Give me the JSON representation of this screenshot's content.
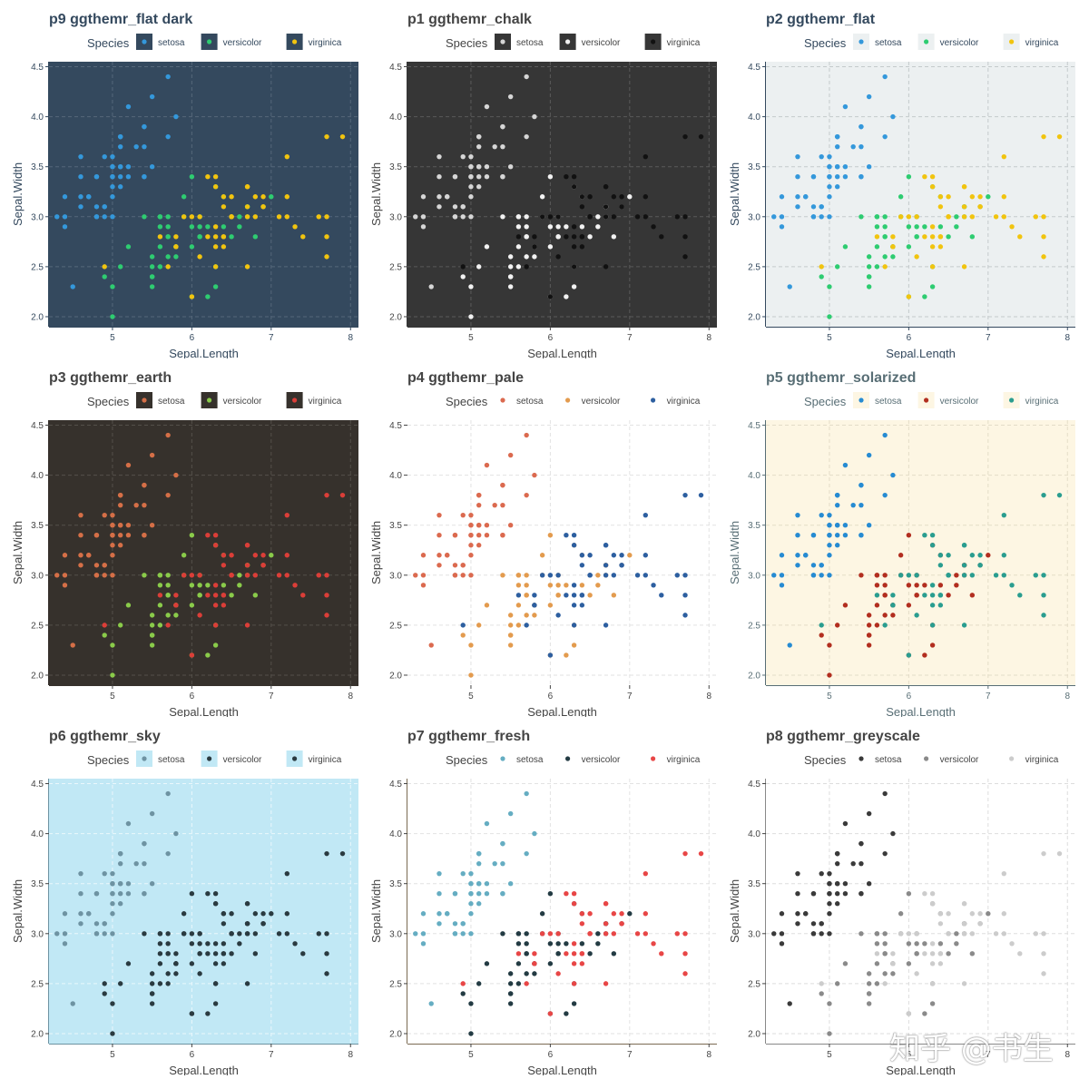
{
  "watermark": "知乎 @书生",
  "chart_data": [
    {
      "type": "scatter",
      "title": "p9 ggthemr_flat dark",
      "xlabel": "Sepal.Length",
      "ylabel": "Sepal.Width",
      "legend_title": "Species",
      "legend_position": "top",
      "xlim": [
        4.2,
        8.1
      ],
      "ylim": [
        1.9,
        4.55
      ],
      "x_ticks": [
        5,
        6,
        7,
        8
      ],
      "y_ticks": [
        2.0,
        2.5,
        3.0,
        3.5,
        4.0,
        4.5
      ],
      "grid": true,
      "legend_key_bg": "#34495E",
      "legend_point_style": "dot",
      "series": [
        {
          "name": "setosa",
          "color": "#3498DB"
        },
        {
          "name": "versicolor",
          "color": "#2ECC71"
        },
        {
          "name": "virginica",
          "color": "#F1C40F"
        }
      ],
      "theme": {
        "panel_bg": "#34495E",
        "text_color": "#34495E",
        "title_color": "#34495E",
        "tick_color": "#34495E",
        "grid_color": "#55677A",
        "axis_line": "#34495E"
      }
    },
    {
      "type": "scatter",
      "title": "p1 ggthemr_chalk",
      "xlabel": "Sepal.Length",
      "ylabel": "Sepal.Width",
      "legend_title": "Species",
      "legend_position": "top",
      "xlim": [
        4.2,
        8.1
      ],
      "ylim": [
        1.9,
        4.55
      ],
      "x_ticks": [
        5,
        6,
        7,
        8
      ],
      "y_ticks": [
        2.0,
        2.5,
        3.0,
        3.5,
        4.0,
        4.5
      ],
      "grid": true,
      "legend_key_bg": "#363636",
      "legend_point_style": "dot",
      "series": [
        {
          "name": "setosa",
          "color": "#D6D6D6"
        },
        {
          "name": "versicolor",
          "color": "#F2F2F2"
        },
        {
          "name": "virginica",
          "color": "#111111"
        }
      ],
      "theme": {
        "panel_bg": "#363636",
        "text_color": "#444444",
        "title_color": "#444444",
        "tick_color": "#444444",
        "grid_color": "#5A5A5A",
        "axis_line": "#363636"
      }
    },
    {
      "type": "scatter",
      "title": "p2 ggthemr_flat",
      "xlabel": "Sepal.Length",
      "ylabel": "Sepal.Width",
      "legend_title": "Species",
      "legend_position": "top",
      "xlim": [
        4.2,
        8.1
      ],
      "ylim": [
        1.9,
        4.55
      ],
      "x_ticks": [
        5,
        6,
        7,
        8
      ],
      "y_ticks": [
        2.0,
        2.5,
        3.0,
        3.5,
        4.0,
        4.5
      ],
      "grid": true,
      "legend_key_bg": "#ECF0F1",
      "legend_point_style": "dot",
      "series": [
        {
          "name": "setosa",
          "color": "#3498DB"
        },
        {
          "name": "versicolor",
          "color": "#2ECC71"
        },
        {
          "name": "virginica",
          "color": "#F1C40F"
        }
      ],
      "theme": {
        "panel_bg": "#ECF0F1",
        "text_color": "#34495E",
        "title_color": "#34495E",
        "tick_color": "#34495E",
        "grid_color": "#C4CACC",
        "axis_line": "#34495E"
      }
    },
    {
      "type": "scatter",
      "title": "p3 ggthemr_earth",
      "xlabel": "Sepal.Length",
      "ylabel": "Sepal.Width",
      "legend_title": "Species",
      "legend_position": "top",
      "xlim": [
        4.2,
        8.1
      ],
      "ylim": [
        1.9,
        4.55
      ],
      "x_ticks": [
        5,
        6,
        7,
        8
      ],
      "y_ticks": [
        2.0,
        2.5,
        3.0,
        3.5,
        4.0,
        4.5
      ],
      "grid": true,
      "legend_key_bg": "#36312C",
      "legend_point_style": "dot",
      "series": [
        {
          "name": "setosa",
          "color": "#D56F47"
        },
        {
          "name": "versicolor",
          "color": "#8ACB4A"
        },
        {
          "name": "virginica",
          "color": "#DB3E38"
        }
      ],
      "theme": {
        "panel_bg": "#36312C",
        "text_color": "#444444",
        "title_color": "#444444",
        "tick_color": "#444444",
        "grid_color": "#54504A",
        "axis_line": "#36312C"
      }
    },
    {
      "type": "scatter",
      "title": "p4 ggthemr_pale",
      "xlabel": "Sepal.Length",
      "ylabel": "Sepal.Width",
      "legend_title": "Species",
      "legend_position": "top",
      "xlim": [
        4.2,
        8.1
      ],
      "ylim": [
        1.9,
        4.55
      ],
      "x_ticks": [
        5,
        6,
        7,
        8
      ],
      "y_ticks": [
        2.0,
        2.5,
        3.0,
        3.5,
        4.0,
        4.5
      ],
      "grid": true,
      "legend_key_bg": "#FFFFFF",
      "legend_point_style": "dot",
      "series": [
        {
          "name": "setosa",
          "color": "#DB6A4F"
        },
        {
          "name": "versicolor",
          "color": "#E39B4E"
        },
        {
          "name": "virginica",
          "color": "#2D5FA0"
        }
      ],
      "theme": {
        "panel_bg": "#FFFFFF",
        "text_color": "#444444",
        "title_color": "#444444",
        "tick_color": "#444444",
        "grid_color": "#E2E2E2",
        "axis_line": "#FFFFFF"
      }
    },
    {
      "type": "scatter",
      "title": "p5 ggthemr_solarized",
      "xlabel": "Sepal.Length",
      "ylabel": "Sepal.Width",
      "legend_title": "Species",
      "legend_position": "top",
      "xlim": [
        4.2,
        8.1
      ],
      "ylim": [
        1.9,
        4.55
      ],
      "x_ticks": [
        5,
        6,
        7,
        8
      ],
      "y_ticks": [
        2.0,
        2.5,
        3.0,
        3.5,
        4.0,
        4.5
      ],
      "grid": true,
      "legend_key_bg": "#FDF6E3",
      "legend_point_style": "dot",
      "series": [
        {
          "name": "setosa",
          "color": "#268BD2"
        },
        {
          "name": "versicolor",
          "color": "#B22E1F"
        },
        {
          "name": "virginica",
          "color": "#2A9D8F"
        }
      ],
      "theme": {
        "panel_bg": "#FDF6E3",
        "text_color": "#586E75",
        "title_color": "#586E75",
        "tick_color": "#586E75",
        "grid_color": "#E4DDC8",
        "axis_line": "#586E75"
      }
    },
    {
      "type": "scatter",
      "title": "p6 ggthemr_sky",
      "xlabel": "Sepal.Length",
      "ylabel": "Sepal.Width",
      "legend_title": "Species",
      "legend_position": "top",
      "xlim": [
        4.2,
        8.1
      ],
      "ylim": [
        1.9,
        4.55
      ],
      "x_ticks": [
        5,
        6,
        7,
        8
      ],
      "y_ticks": [
        2.0,
        2.5,
        3.0,
        3.5,
        4.0,
        4.5
      ],
      "grid": true,
      "legend_key_bg": "#C1E8F5",
      "legend_point_style": "dot",
      "series": [
        {
          "name": "setosa",
          "color": "#6E93A2"
        },
        {
          "name": "versicolor",
          "color": "#2A3A40"
        },
        {
          "name": "virginica",
          "color": "#2A3A40"
        }
      ],
      "theme": {
        "panel_bg": "#C1E8F5",
        "text_color": "#444444",
        "title_color": "#444444",
        "tick_color": "#444444",
        "grid_color": "#EAF7FC",
        "axis_line": "#6E93A2"
      }
    },
    {
      "type": "scatter",
      "title": "p7 ggthemr_fresh",
      "xlabel": "Sepal.Length",
      "ylabel": "Sepal.Width",
      "legend_title": "Species",
      "legend_position": "top",
      "xlim": [
        4.2,
        8.1
      ],
      "ylim": [
        1.9,
        4.55
      ],
      "x_ticks": [
        5,
        6,
        7,
        8
      ],
      "y_ticks": [
        2.0,
        2.5,
        3.0,
        3.5,
        4.0,
        4.5
      ],
      "grid": true,
      "legend_key_bg": "#FFFFFF",
      "legend_point_style": "dot",
      "series": [
        {
          "name": "setosa",
          "color": "#65ADC2"
        },
        {
          "name": "versicolor",
          "color": "#233B43"
        },
        {
          "name": "virginica",
          "color": "#E84646"
        }
      ],
      "theme": {
        "panel_bg": "#FFFFFF",
        "text_color": "#444444",
        "title_color": "#444444",
        "tick_color": "#444444",
        "grid_color": "#E2E2E2",
        "axis_line": "#7B6B53"
      }
    },
    {
      "type": "scatter",
      "title": "p8 ggthemr_greyscale",
      "xlabel": "Sepal.Length",
      "ylabel": "Sepal.Width",
      "legend_title": "Species",
      "legend_position": "top",
      "xlim": [
        4.2,
        8.1
      ],
      "ylim": [
        1.9,
        4.55
      ],
      "x_ticks": [
        5,
        6,
        7,
        8
      ],
      "y_ticks": [
        2.0,
        2.5,
        3.0,
        3.5,
        4.0,
        4.5
      ],
      "grid": true,
      "legend_key_bg": "#FFFFFF",
      "legend_point_style": "dot",
      "series": [
        {
          "name": "setosa",
          "color": "#3A3A3A"
        },
        {
          "name": "versicolor",
          "color": "#8A8A8A"
        },
        {
          "name": "virginica",
          "color": "#CCCCCC"
        }
      ],
      "theme": {
        "panel_bg": "#FFFFFF",
        "text_color": "#444444",
        "title_color": "#444444",
        "tick_color": "#444444",
        "grid_color": "#DDDDDD",
        "axis_line": "#888888"
      }
    }
  ],
  "iris": {
    "setosa": [
      [
        5.1,
        3.5
      ],
      [
        4.9,
        3.0
      ],
      [
        4.7,
        3.2
      ],
      [
        4.6,
        3.1
      ],
      [
        5.0,
        3.6
      ],
      [
        5.4,
        3.9
      ],
      [
        4.6,
        3.4
      ],
      [
        5.0,
        3.4
      ],
      [
        4.4,
        2.9
      ],
      [
        4.9,
        3.1
      ],
      [
        5.4,
        3.7
      ],
      [
        4.8,
        3.4
      ],
      [
        4.8,
        3.0
      ],
      [
        4.3,
        3.0
      ],
      [
        5.8,
        4.0
      ],
      [
        5.7,
        4.4
      ],
      [
        5.4,
        3.9
      ],
      [
        5.1,
        3.5
      ],
      [
        5.7,
        3.8
      ],
      [
        5.1,
        3.8
      ],
      [
        5.4,
        3.4
      ],
      [
        5.1,
        3.7
      ],
      [
        4.6,
        3.6
      ],
      [
        5.1,
        3.3
      ],
      [
        4.8,
        3.4
      ],
      [
        5.0,
        3.0
      ],
      [
        5.0,
        3.4
      ],
      [
        5.2,
        3.5
      ],
      [
        5.2,
        3.4
      ],
      [
        4.7,
        3.2
      ],
      [
        4.8,
        3.1
      ],
      [
        5.4,
        3.4
      ],
      [
        5.2,
        4.1
      ],
      [
        5.5,
        4.2
      ],
      [
        4.9,
        3.1
      ],
      [
        5.0,
        3.2
      ],
      [
        5.5,
        3.5
      ],
      [
        4.9,
        3.6
      ],
      [
        4.4,
        3.0
      ],
      [
        5.1,
        3.4
      ],
      [
        5.0,
        3.5
      ],
      [
        4.5,
        2.3
      ],
      [
        4.4,
        3.2
      ],
      [
        5.0,
        3.5
      ],
      [
        5.1,
        3.8
      ],
      [
        4.8,
        3.0
      ],
      [
        5.1,
        3.8
      ],
      [
        4.6,
        3.2
      ],
      [
        5.3,
        3.7
      ],
      [
        5.0,
        3.3
      ]
    ],
    "versicolor": [
      [
        7.0,
        3.2
      ],
      [
        6.4,
        3.2
      ],
      [
        6.9,
        3.1
      ],
      [
        5.5,
        2.3
      ],
      [
        6.5,
        2.8
      ],
      [
        5.7,
        2.8
      ],
      [
        6.3,
        3.3
      ],
      [
        4.9,
        2.4
      ],
      [
        6.6,
        2.9
      ],
      [
        5.2,
        2.7
      ],
      [
        5.0,
        2.0
      ],
      [
        5.9,
        3.0
      ],
      [
        6.0,
        2.2
      ],
      [
        6.1,
        2.9
      ],
      [
        5.6,
        2.9
      ],
      [
        6.7,
        3.1
      ],
      [
        5.6,
        3.0
      ],
      [
        5.8,
        2.7
      ],
      [
        6.2,
        2.2
      ],
      [
        5.6,
        2.5
      ],
      [
        5.9,
        3.2
      ],
      [
        6.1,
        2.8
      ],
      [
        6.3,
        2.5
      ],
      [
        6.1,
        2.8
      ],
      [
        6.4,
        2.9
      ],
      [
        6.6,
        3.0
      ],
      [
        6.8,
        2.8
      ],
      [
        6.7,
        3.0
      ],
      [
        6.0,
        2.9
      ],
      [
        5.7,
        2.6
      ],
      [
        5.5,
        2.4
      ],
      [
        5.5,
        2.4
      ],
      [
        5.8,
        2.7
      ],
      [
        6.0,
        2.7
      ],
      [
        5.4,
        3.0
      ],
      [
        6.0,
        3.4
      ],
      [
        6.7,
        3.1
      ],
      [
        6.3,
        2.3
      ],
      [
        5.6,
        3.0
      ],
      [
        5.5,
        2.5
      ],
      [
        5.5,
        2.6
      ],
      [
        6.1,
        3.0
      ],
      [
        5.8,
        2.6
      ],
      [
        5.0,
        2.3
      ],
      [
        5.6,
        2.7
      ],
      [
        5.7,
        3.0
      ],
      [
        5.7,
        2.9
      ],
      [
        6.2,
        2.9
      ],
      [
        5.1,
        2.5
      ],
      [
        5.7,
        2.8
      ]
    ],
    "virginica": [
      [
        6.3,
        3.3
      ],
      [
        5.8,
        2.7
      ],
      [
        7.1,
        3.0
      ],
      [
        6.3,
        2.9
      ],
      [
        6.5,
        3.0
      ],
      [
        7.6,
        3.0
      ],
      [
        4.9,
        2.5
      ],
      [
        7.3,
        2.9
      ],
      [
        6.7,
        2.5
      ],
      [
        7.2,
        3.6
      ],
      [
        6.5,
        3.2
      ],
      [
        6.4,
        2.7
      ],
      [
        6.8,
        3.0
      ],
      [
        5.7,
        2.5
      ],
      [
        5.8,
        2.8
      ],
      [
        6.4,
        3.2
      ],
      [
        6.5,
        3.0
      ],
      [
        7.7,
        3.8
      ],
      [
        7.7,
        2.6
      ],
      [
        6.0,
        2.2
      ],
      [
        6.9,
        3.2
      ],
      [
        5.6,
        2.8
      ],
      [
        7.7,
        2.8
      ],
      [
        6.3,
        2.7
      ],
      [
        6.7,
        3.3
      ],
      [
        7.2,
        3.2
      ],
      [
        6.2,
        2.8
      ],
      [
        6.1,
        3.0
      ],
      [
        6.4,
        2.8
      ],
      [
        7.2,
        3.0
      ],
      [
        7.4,
        2.8
      ],
      [
        7.9,
        3.8
      ],
      [
        6.4,
        2.8
      ],
      [
        6.3,
        2.8
      ],
      [
        6.1,
        2.6
      ],
      [
        7.7,
        3.0
      ],
      [
        6.3,
        3.4
      ],
      [
        6.4,
        3.1
      ],
      [
        6.0,
        3.0
      ],
      [
        6.9,
        3.1
      ],
      [
        6.7,
        3.1
      ],
      [
        6.9,
        3.1
      ],
      [
        5.8,
        2.7
      ],
      [
        6.8,
        3.2
      ],
      [
        6.7,
        3.3
      ],
      [
        6.7,
        3.0
      ],
      [
        6.3,
        2.5
      ],
      [
        6.5,
        3.0
      ],
      [
        6.2,
        3.4
      ],
      [
        5.9,
        3.0
      ]
    ]
  }
}
